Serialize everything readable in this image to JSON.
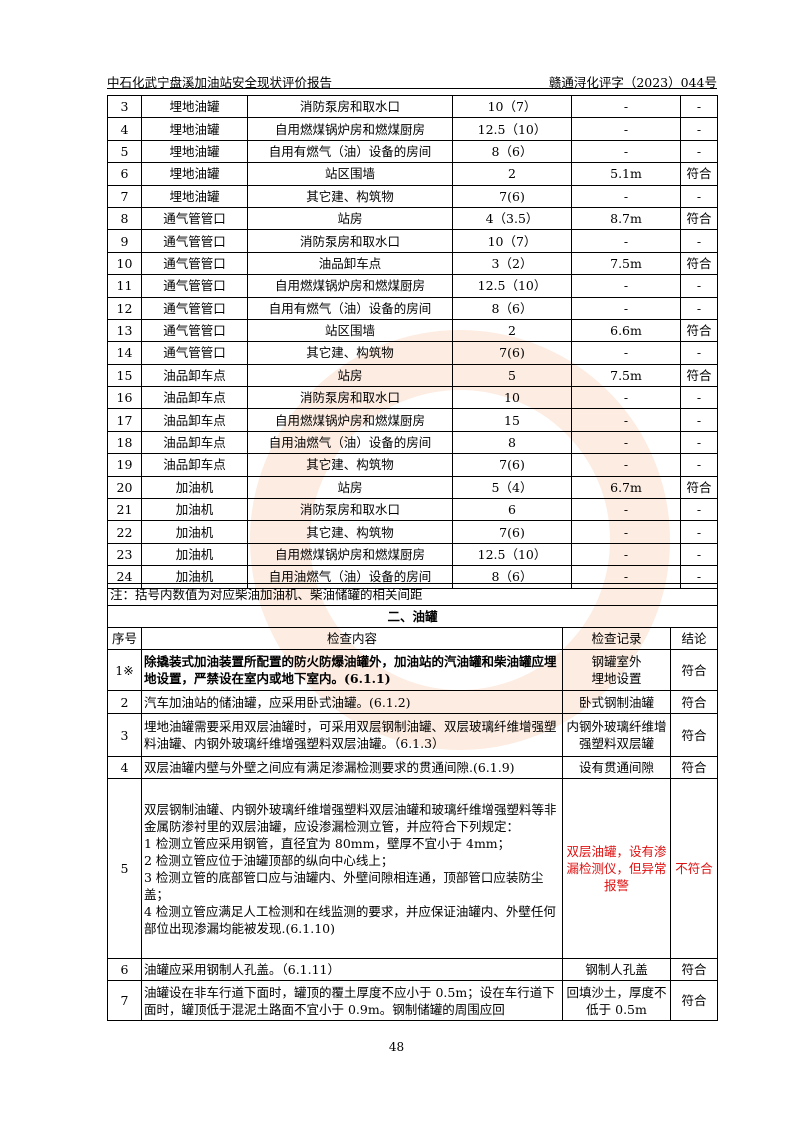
{
  "header": {
    "title": "中石化武宁盘溪加油站安全现状评价报告",
    "doc_no": "赣通浔化评字（2023）044号"
  },
  "distance_rows": [
    [
      "3",
      "埋地油罐",
      "消防泵房和取水口",
      "10（7）",
      "-",
      "-"
    ],
    [
      "4",
      "埋地油罐",
      "自用燃煤锅炉房和燃煤厨房",
      "12.5（10）",
      "-",
      "-"
    ],
    [
      "5",
      "埋地油罐",
      "自用有燃气（油）设备的房间",
      "8（6）",
      "-",
      "-"
    ],
    [
      "6",
      "埋地油罐",
      "站区围墙",
      "2",
      "5.1m",
      "符合"
    ],
    [
      "7",
      "埋地油罐",
      "其它建、构筑物",
      "7(6)",
      "-",
      "-"
    ],
    [
      "8",
      "通气管管口",
      "站房",
      "4（3.5）",
      "8.7m",
      "符合"
    ],
    [
      "9",
      "通气管管口",
      "消防泵房和取水口",
      "10（7）",
      "-",
      "-"
    ],
    [
      "10",
      "通气管管口",
      "油品卸车点",
      "3（2）",
      "7.5m",
      "符合"
    ],
    [
      "11",
      "通气管管口",
      "自用燃煤锅炉房和燃煤厨房",
      "12.5（10）",
      "-",
      "-"
    ],
    [
      "12",
      "通气管管口",
      "自用有燃气（油）设备的房间",
      "8（6）",
      "-",
      "-"
    ],
    [
      "13",
      "通气管管口",
      "站区围墙",
      "2",
      "6.6m",
      "符合"
    ],
    [
      "14",
      "通气管管口",
      "其它建、构筑物",
      "7(6)",
      "-",
      "-"
    ],
    [
      "15",
      "油品卸车点",
      "站房",
      "5",
      "7.5m",
      "符合"
    ],
    [
      "16",
      "油品卸车点",
      "消防泵房和取水口",
      "10",
      "-",
      "-"
    ],
    [
      "17",
      "油品卸车点",
      "自用燃煤锅炉房和燃煤厨房",
      "15",
      "-",
      "-"
    ],
    [
      "18",
      "油品卸车点",
      "自用油燃气（油）设备的房间",
      "8",
      "-",
      "-"
    ],
    [
      "19",
      "油品卸车点",
      "其它建、构筑物",
      "7(6)",
      "-",
      "-"
    ],
    [
      "20",
      "加油机",
      "站房",
      "5（4）",
      "6.7m",
      "符合"
    ],
    [
      "21",
      "加油机",
      "消防泵房和取水口",
      "6",
      "-",
      "-"
    ],
    [
      "22",
      "加油机",
      "其它建、构筑物",
      "7(6)",
      "-",
      "-"
    ],
    [
      "23",
      "加油机",
      "自用燃煤锅炉房和燃煤厨房",
      "12.5（10）",
      "-",
      "-"
    ],
    [
      "24",
      "加油机",
      "自用油燃气（油）设备的房间",
      "8（6）",
      "-",
      "-"
    ]
  ],
  "note": "注：括号内数值为对应柴油加油机、柴油储罐的相关间距",
  "section_title": "二、油罐",
  "check_header": {
    "no": "序号",
    "content": "检查内容",
    "record": "检查记录",
    "result": "结论"
  },
  "checks": [
    {
      "no": "1※",
      "content": "除撬装式加油装置所配置的防火防爆油罐外，加油站的汽油罐和柴油罐应埋地设置，严禁设在室内或地下室内。(6.1.1)",
      "record": "钢罐室外\n埋地设置",
      "result": "符合"
    },
    {
      "no": "2",
      "content": "汽车加油站的储油罐，应采用卧式油罐。(6.1.2)",
      "record": "卧式钢制油罐",
      "result": "符合"
    },
    {
      "no": "3",
      "content": "埋地油罐需要采用双层油罐时，可采用双层钢制油罐、双层玻璃纤维增强塑料油罐、内钢外玻璃纤维增强塑料双层油罐。（6.1.3）",
      "record": "内钢外玻璃纤维增强塑料双层罐",
      "result": "符合"
    },
    {
      "no": "4",
      "content": "双层油罐内壁与外壁之间应有满足渗漏检测要求的贯通间隙.(6.1.9)",
      "record": "设有贯通间隙",
      "result": "符合"
    },
    {
      "no": "5",
      "content_lines": [
        "双层钢制油罐、内钢外玻璃纤维增强塑料双层油罐和玻璃纤维增强塑料等非金属防渗衬里的双层油罐，应设渗漏检测立管，并应符合下列规定：",
        "1  检测立管应采用钢管，直径宜为 80mm，壁厚不宜小于 4mm；",
        "2  检测立管应位于油罐顶部的纵向中心线上；",
        "3  检测立管的底部管口应与油罐内、外壁间隙相连通，顶部管口应装防尘盖；",
        "4  检测立管应满足人工检测和在线监测的要求，并应保证油罐内、外壁任何部位出现渗漏均能被发现.(6.1.10)"
      ],
      "record": "双层油罐，设有渗漏检测仪，但异常报警",
      "result": "不符合"
    },
    {
      "no": "6",
      "content": "油罐应采用钢制人孔盖。（6.1.11）",
      "record": "钢制人孔盖",
      "result": "符合"
    },
    {
      "no": "7",
      "content": "油罐设在非车行道下面时，罐顶的覆土厚度不应小于 0.5m；设在车行道下面时，罐顶低于混泥土路面不宜小于 0.9m。钢制储罐的周围应回",
      "record": "回填沙土，厚度不低于 0.5m",
      "result": "符合"
    }
  ],
  "colors": {
    "nonconform": "#e01010"
  },
  "page_number": "48"
}
